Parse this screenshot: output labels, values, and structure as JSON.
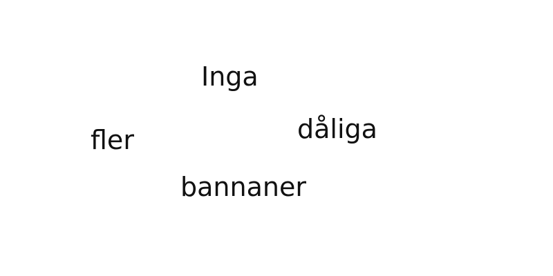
{
  "words": {
    "inga": "Inga",
    "daliga": "dåliga",
    "fler": "fler",
    "bannaner": "bannaner"
  },
  "colors": {
    "background": "#ffffff",
    "text": "#111111"
  }
}
